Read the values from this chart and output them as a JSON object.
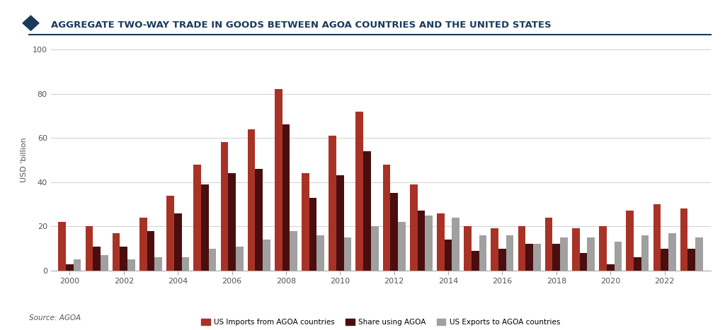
{
  "title": "AGGREGATE TWO-WAY TRADE IN GOODS BETWEEN AGOA COUNTRIES AND THE UNITED STATES",
  "ylabel": "USD 'billion",
  "source": "Source: AGOA",
  "ylim": [
    0,
    100
  ],
  "yticks": [
    0,
    20,
    40,
    60,
    80,
    100
  ],
  "years": [
    2000,
    2001,
    2002,
    2003,
    2004,
    2005,
    2006,
    2007,
    2008,
    2009,
    2010,
    2011,
    2012,
    2013,
    2014,
    2015,
    2016,
    2017,
    2018,
    2019,
    2020,
    2021,
    2022,
    2023
  ],
  "us_imports": [
    22,
    20,
    17,
    24,
    34,
    48,
    58,
    64,
    82,
    44,
    61,
    72,
    48,
    39,
    26,
    20,
    19,
    20,
    24,
    19,
    20,
    27,
    30,
    28
  ],
  "share_agoa": [
    3,
    11,
    11,
    18,
    26,
    39,
    44,
    46,
    66,
    33,
    43,
    54,
    35,
    27,
    14,
    9,
    10,
    12,
    12,
    8,
    3,
    6,
    10,
    10
  ],
  "us_exports": [
    5,
    7,
    5,
    6,
    6,
    10,
    11,
    14,
    18,
    16,
    15,
    20,
    22,
    25,
    24,
    16,
    16,
    12,
    15,
    15,
    13,
    16,
    17,
    15
  ],
  "imports_color": "#a93226",
  "share_color": "#4a0e0e",
  "exports_color": "#a0a0a0",
  "bg_color": "#f9f9f9",
  "grid_color": "#d0d0d0",
  "title_color": "#1a3a5c",
  "bar_width": 0.28,
  "legend_labels": [
    "US Imports from AGOA countries",
    "Share using AGOA",
    "US Exports to AGOA countries"
  ]
}
